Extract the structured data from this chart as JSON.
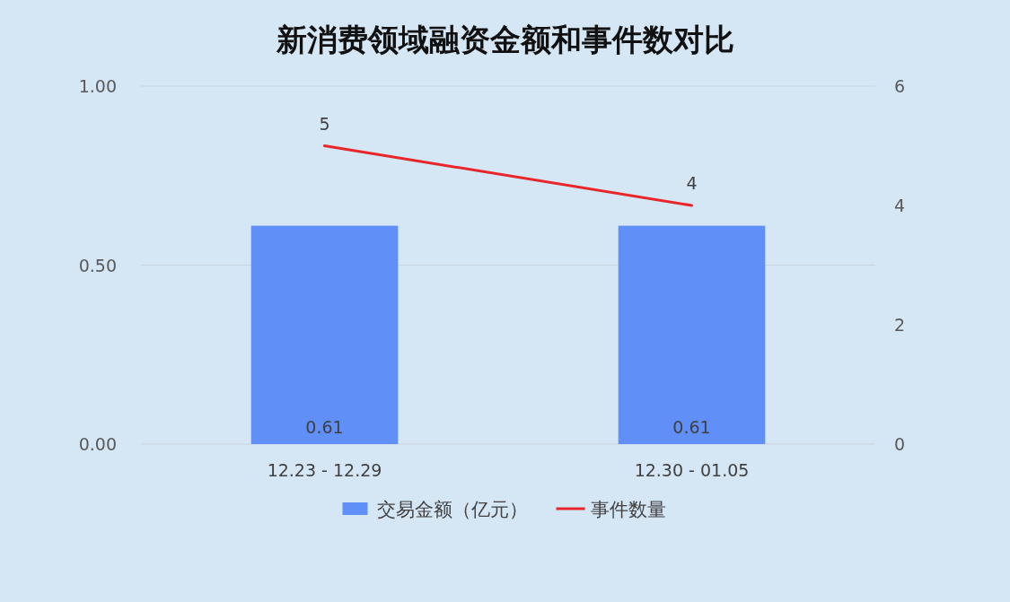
{
  "chart_data": {
    "type": "bar",
    "title": "新消费领域融资金额和事件数对比",
    "categories": [
      "12.23 - 12.29",
      "12.30 - 01.05"
    ],
    "series": [
      {
        "name": "交易金额（亿元）",
        "color": "#5f8ff7",
        "values": [
          0.61,
          0.61
        ]
      },
      {
        "name": "事件数量",
        "type": "line",
        "axis": "y2",
        "color": "#e8262a",
        "values": [
          5,
          4
        ]
      }
    ],
    "ylim": [
      0,
      1
    ],
    "yticks": [
      {
        "value": 0,
        "label": "0.00"
      },
      {
        "value": 0.5,
        "label": "0.50"
      },
      {
        "value": 1,
        "label": "1.00"
      }
    ],
    "y2lim": [
      0,
      6
    ],
    "y2ticks": [
      0,
      2,
      4,
      6
    ],
    "grid": "y",
    "legend": "bottom",
    "data_labels": true
  }
}
